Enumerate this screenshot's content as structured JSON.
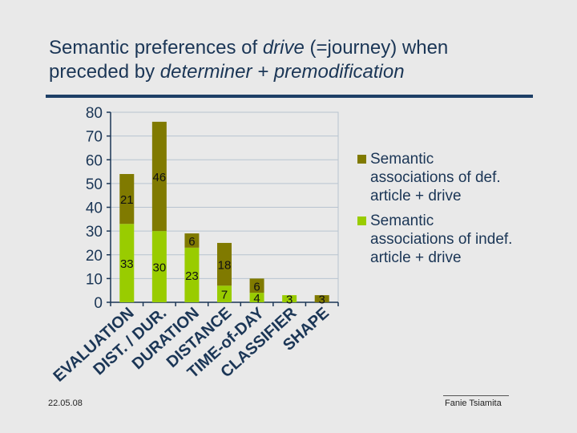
{
  "title": {
    "part1": "Semantic preferences of ",
    "italic1": "drive",
    "part2": " (=journey) when",
    "part3": "preceded by ",
    "italic2": "determiner + premodification"
  },
  "footer": {
    "date": "22.05.08",
    "author": "Fanie Tsiamita"
  },
  "chart_data": {
    "type": "bar",
    "stacked": true,
    "categories": [
      "EVALUATION",
      "DIST. / DUR.",
      "DURATION",
      "DISTANCE",
      "TIME-of-DAY",
      "CLASSIFIER",
      "SHAPE"
    ],
    "series": [
      {
        "name": "Semantic associations of indef. article + drive",
        "color": "#99cc00",
        "values": [
          33,
          30,
          23,
          7,
          4,
          3,
          0
        ]
      },
      {
        "name": "Semantic associations of def. article + drive",
        "color": "#807a00",
        "values": [
          21,
          46,
          6,
          18,
          6,
          0,
          3
        ]
      }
    ],
    "yticks": [
      "0",
      "10",
      "20",
      "30",
      "40",
      "50",
      "60",
      "70",
      "80"
    ],
    "ylim": [
      0,
      80
    ],
    "grid": true,
    "legend": "right"
  }
}
